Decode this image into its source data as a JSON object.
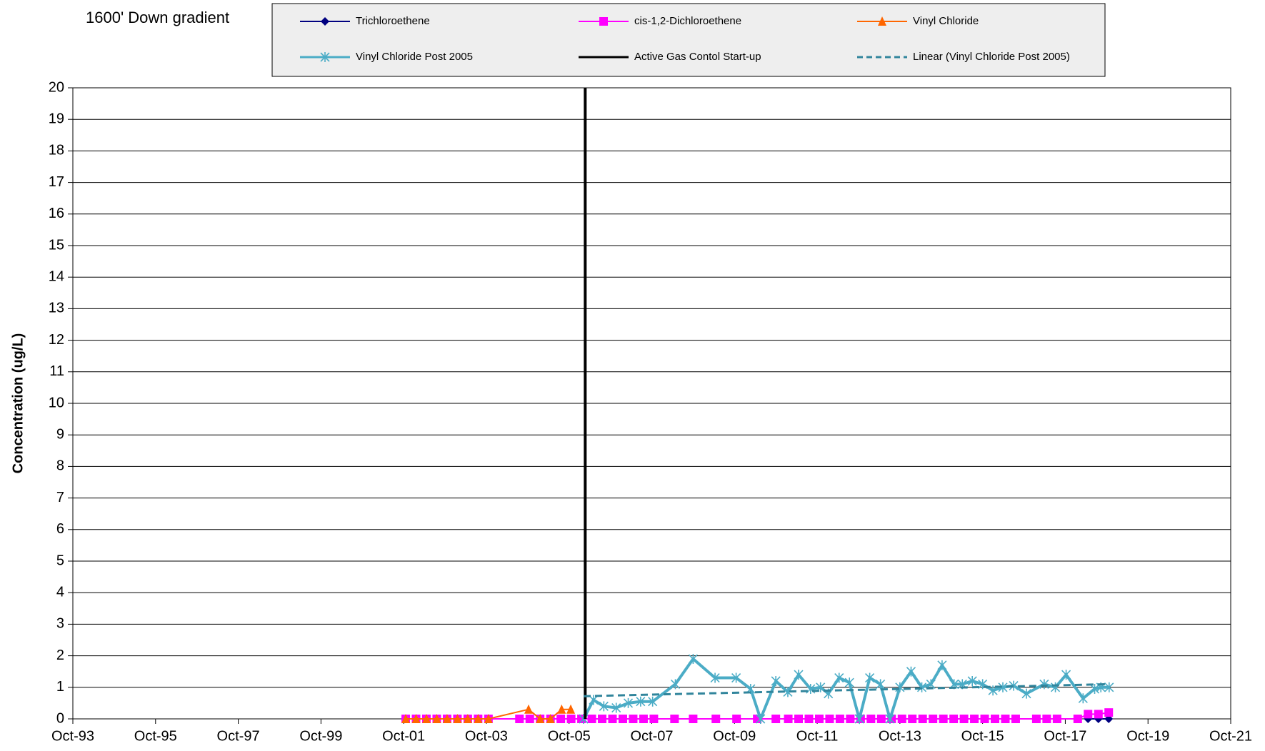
{
  "chart_data": {
    "type": "line",
    "title": "1600' Down gradient",
    "y_label": "Concentration (ug/L)",
    "xlim": [
      1993.75,
      2021.75
    ],
    "xticks": [
      {
        "value": 1993.75,
        "label": "Oct-93"
      },
      {
        "value": 1995.75,
        "label": "Oct-95"
      },
      {
        "value": 1997.75,
        "label": "Oct-97"
      },
      {
        "value": 1999.75,
        "label": "Oct-99"
      },
      {
        "value": 2001.75,
        "label": "Oct-01"
      },
      {
        "value": 2003.75,
        "label": "Oct-03"
      },
      {
        "value": 2005.75,
        "label": "Oct-05"
      },
      {
        "value": 2007.75,
        "label": "Oct-07"
      },
      {
        "value": 2009.75,
        "label": "Oct-09"
      },
      {
        "value": 2011.75,
        "label": "Oct-11"
      },
      {
        "value": 2013.75,
        "label": "Oct-13"
      },
      {
        "value": 2015.75,
        "label": "Oct-15"
      },
      {
        "value": 2017.75,
        "label": "Oct-17"
      },
      {
        "value": 2019.75,
        "label": "Oct-19"
      },
      {
        "value": 2021.75,
        "label": "Oct-21"
      }
    ],
    "ylim": [
      0,
      20
    ],
    "yticks": [
      0,
      1,
      2,
      3,
      4,
      5,
      6,
      7,
      8,
      9,
      10,
      11,
      12,
      13,
      14,
      15,
      16,
      17,
      18,
      19,
      20
    ],
    "grid": true,
    "series": [
      {
        "name": "Trichloroethene",
        "color": "#000080",
        "marker": "diamond",
        "line": "solid",
        "x": [
          2018.3,
          2018.55,
          2018.8
        ],
        "values": [
          0,
          0,
          0
        ]
      },
      {
        "name": "cis-1,2-Dichloroethene",
        "color": "#ff00ff",
        "marker": "square",
        "line": "solid",
        "x": [
          2001.8,
          2002.05,
          2002.3,
          2002.55,
          2002.8,
          2003.05,
          2003.3,
          2003.55,
          2003.8,
          2004.55,
          2004.8,
          2005.05,
          2005.3,
          2005.55,
          2005.8,
          2006.05,
          2006.3,
          2006.55,
          2006.8,
          2007.05,
          2007.3,
          2007.55,
          2007.8,
          2008.3,
          2008.75,
          2009.3,
          2009.8,
          2010.3,
          2010.75,
          2011.05,
          2011.3,
          2011.55,
          2011.8,
          2012.05,
          2012.3,
          2012.55,
          2012.8,
          2013.05,
          2013.3,
          2013.55,
          2013.8,
          2014.05,
          2014.3,
          2014.55,
          2014.8,
          2015.05,
          2015.3,
          2015.55,
          2015.8,
          2016.05,
          2016.3,
          2016.55,
          2017.05,
          2017.3,
          2017.55,
          2018.05,
          2018.3,
          2018.55,
          2018.8
        ],
        "values": [
          0,
          0,
          0,
          0,
          0,
          0,
          0,
          0,
          0,
          0,
          0,
          0,
          0,
          0,
          0,
          0,
          0,
          0,
          0,
          0,
          0,
          0,
          0,
          0,
          0,
          0,
          0,
          0,
          0,
          0,
          0,
          0,
          0,
          0,
          0,
          0,
          0,
          0,
          0,
          0,
          0,
          0,
          0,
          0,
          0,
          0,
          0,
          0,
          0,
          0,
          0,
          0,
          0,
          0,
          0,
          0,
          0.15,
          0.15,
          0.2
        ]
      },
      {
        "name": "Vinyl Chloride",
        "color": "#ff6600",
        "marker": "triangle",
        "line": "solid",
        "x": [
          2001.8,
          2002.05,
          2002.3,
          2002.55,
          2002.8,
          2003.05,
          2003.3,
          2003.55,
          2003.8,
          2004.77,
          2005.05,
          2005.3,
          2005.57,
          2005.79
        ],
        "values": [
          0,
          0,
          0,
          0,
          0,
          0,
          0,
          0,
          0,
          0.3,
          0,
          0,
          0.3,
          0.3
        ]
      },
      {
        "name": "Vinyl Chloride Post 2005",
        "color": "#4bacc6",
        "marker": "star",
        "line": "solid",
        "width": 4,
        "x": [
          2006.1,
          2006.34,
          2006.59,
          2006.89,
          2007.18,
          2007.48,
          2007.77,
          2008.32,
          2008.75,
          2009.28,
          2009.79,
          2010.14,
          2010.38,
          2010.75,
          2011.04,
          2011.3,
          2011.59,
          2011.83,
          2012.02,
          2012.28,
          2012.53,
          2012.77,
          2013.02,
          2013.28,
          2013.51,
          2013.75,
          2014.02,
          2014.28,
          2014.5,
          2014.77,
          2015.06,
          2015.26,
          2015.5,
          2015.75,
          2016.0,
          2016.24,
          2016.5,
          2016.81,
          2017.24,
          2017.51,
          2017.77,
          2018.18,
          2018.46,
          2018.61,
          2018.81
        ],
        "values": [
          0,
          0.6,
          0.4,
          0.35,
          0.5,
          0.55,
          0.55,
          1.1,
          1.9,
          1.3,
          1.3,
          0.95,
          0,
          1.2,
          0.85,
          1.4,
          0.95,
          1.0,
          0.8,
          1.3,
          1.15,
          0,
          1.3,
          1.1,
          0,
          1.0,
          1.5,
          1.0,
          1.1,
          1.7,
          1.1,
          1.1,
          1.2,
          1.1,
          0.9,
          1.0,
          1.05,
          0.8,
          1.1,
          1.0,
          1.4,
          0.65,
          0.95,
          1.0,
          1.0
        ]
      },
      {
        "name": "Active Gas Contol Start-up",
        "color": "#000000",
        "marker": "none",
        "line": "solid",
        "width": 4,
        "x": [
          2006.14,
          2006.14
        ],
        "values": [
          0,
          20
        ]
      },
      {
        "name": "Linear (Vinyl Chloride Post 2005)",
        "color": "#31859c",
        "marker": "none",
        "line": "dash",
        "width": 3,
        "x": [
          2006.1,
          2018.81
        ],
        "values": [
          0.72,
          1.1
        ]
      }
    ]
  }
}
